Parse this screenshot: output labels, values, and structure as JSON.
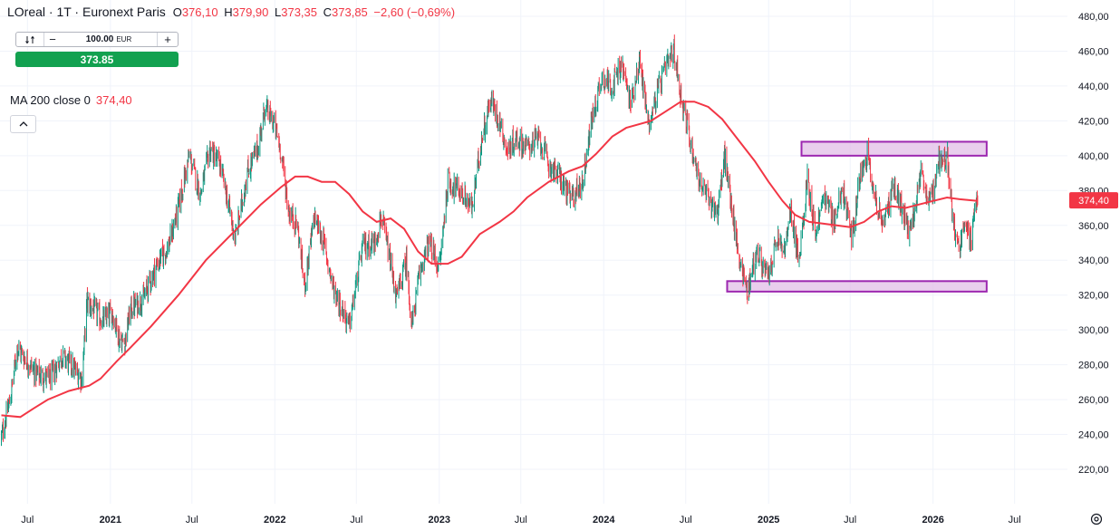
{
  "header": {
    "symbol": "LOreal · 1T · Euronext Paris",
    "ohlc": [
      {
        "key": "O",
        "value": "376,10"
      },
      {
        "key": "H",
        "value": "379,90"
      },
      {
        "key": "L",
        "value": "373,35"
      },
      {
        "key": "C",
        "value": "373,85"
      }
    ],
    "change": "−2,60 (−0,69%)"
  },
  "order_panel": {
    "sync_icon": "sync-icon",
    "minus": "−",
    "quantity": "100.00",
    "currency": "EUR",
    "plus": "+",
    "price": "373.85"
  },
  "indicator": {
    "label": "MA 200 close 0",
    "value": "374,40",
    "collapse_icon": "chevron-up-icon"
  },
  "settings_icon": "gear-icon",
  "colors": {
    "up": "#089981",
    "down": "#f23645",
    "ma": "#f23645",
    "zone_fill": "#e1bee7",
    "zone_stroke": "#9c27b0",
    "buy": "#12a150"
  },
  "chart_data": {
    "type": "candlestick",
    "price_axis": {
      "ticks": [
        "480,00",
        "460,00",
        "440,00",
        "420,00",
        "400,00",
        "380,00",
        "360,00",
        "340,00",
        "320,00",
        "300,00",
        "280,00",
        "260,00",
        "240,00",
        "220,00"
      ],
      "range": [
        208,
        482
      ],
      "current_label": "374,40"
    },
    "time_axis": {
      "labels": [
        "Jul",
        "2021",
        "Jul",
        "2022",
        "Jul",
        "2023",
        "Jul",
        "2024",
        "Jul",
        "2025",
        "Jul",
        "2026",
        "Jul"
      ],
      "bold": [
        "2021",
        "2022",
        "2023",
        "2024",
        "2025",
        "2026"
      ],
      "start": "2020-05-01",
      "end": "2026-08-31"
    },
    "zones": [
      {
        "from": "2025-03-15",
        "to": "2026-04-30",
        "low": 400,
        "high": 408
      },
      {
        "from": "2024-10-01",
        "to": "2026-04-30",
        "low": 322,
        "high": 328
      }
    ],
    "price_path": [
      [
        "2020-05-04",
        238
      ],
      [
        "2020-05-25",
        262
      ],
      [
        "2020-06-08",
        290
      ],
      [
        "2020-06-25",
        284
      ],
      [
        "2020-07-20",
        275
      ],
      [
        "2020-08-20",
        272
      ],
      [
        "2020-09-15",
        285
      ],
      [
        "2020-10-05",
        280
      ],
      [
        "2020-10-30",
        272
      ],
      [
        "2020-11-10",
        316
      ],
      [
        "2020-11-25",
        312
      ],
      [
        "2020-12-15",
        305
      ],
      [
        "2021-01-05",
        310
      ],
      [
        "2021-01-20",
        296
      ],
      [
        "2021-02-01",
        292
      ],
      [
        "2021-02-15",
        312
      ],
      [
        "2021-03-15",
        318
      ],
      [
        "2021-04-15",
        338
      ],
      [
        "2021-05-10",
        348
      ],
      [
        "2021-06-01",
        370
      ],
      [
        "2021-06-25",
        400
      ],
      [
        "2021-07-20",
        378
      ],
      [
        "2021-08-10",
        404
      ],
      [
        "2021-09-01",
        395
      ],
      [
        "2021-09-20",
        372
      ],
      [
        "2021-10-05",
        352
      ],
      [
        "2021-11-01",
        390
      ],
      [
        "2021-11-25",
        405
      ],
      [
        "2021-12-10",
        428
      ],
      [
        "2021-12-31",
        418
      ],
      [
        "2022-01-15",
        402
      ],
      [
        "2022-02-01",
        368
      ],
      [
        "2022-02-20",
        360
      ],
      [
        "2022-03-08",
        325
      ],
      [
        "2022-03-30",
        365
      ],
      [
        "2022-04-20",
        350
      ],
      [
        "2022-05-10",
        325
      ],
      [
        "2022-06-15",
        302
      ],
      [
        "2022-07-15",
        348
      ],
      [
        "2022-08-10",
        350
      ],
      [
        "2022-08-25",
        365
      ],
      [
        "2022-09-10",
        345
      ],
      [
        "2022-09-28",
        318
      ],
      [
        "2022-10-20",
        340
      ],
      [
        "2022-11-01",
        302
      ],
      [
        "2022-11-20",
        335
      ],
      [
        "2022-12-10",
        350
      ],
      [
        "2023-01-01",
        335
      ],
      [
        "2023-01-20",
        385
      ],
      [
        "2023-02-15",
        380
      ],
      [
        "2023-03-15",
        370
      ],
      [
        "2023-04-05",
        410
      ],
      [
        "2023-04-25",
        432
      ],
      [
        "2023-05-15",
        420
      ],
      [
        "2023-06-01",
        402
      ],
      [
        "2023-06-20",
        410
      ],
      [
        "2023-07-15",
        405
      ],
      [
        "2023-08-10",
        410
      ],
      [
        "2023-09-01",
        395
      ],
      [
        "2023-09-25",
        388
      ],
      [
        "2023-10-20",
        375
      ],
      [
        "2023-11-15",
        385
      ],
      [
        "2023-12-05",
        420
      ],
      [
        "2023-12-28",
        445
      ],
      [
        "2024-01-20",
        440
      ],
      [
        "2024-02-10",
        452
      ],
      [
        "2024-03-01",
        430
      ],
      [
        "2024-03-20",
        455
      ],
      [
        "2024-04-10",
        418
      ],
      [
        "2024-05-01",
        438
      ],
      [
        "2024-05-20",
        452
      ],
      [
        "2024-06-05",
        460
      ],
      [
        "2024-06-20",
        435
      ],
      [
        "2024-07-10",
        410
      ],
      [
        "2024-08-01",
        385
      ],
      [
        "2024-08-20",
        375
      ],
      [
        "2024-09-10",
        368
      ],
      [
        "2024-09-25",
        400
      ],
      [
        "2024-10-10",
        372
      ],
      [
        "2024-10-25",
        345
      ],
      [
        "2024-11-15",
        322
      ],
      [
        "2024-12-05",
        345
      ],
      [
        "2024-12-31",
        330
      ],
      [
        "2025-01-20",
        352
      ],
      [
        "2025-02-05",
        345
      ],
      [
        "2025-02-20",
        368
      ],
      [
        "2025-03-10",
        338
      ],
      [
        "2025-03-28",
        388
      ],
      [
        "2025-04-15",
        355
      ],
      [
        "2025-05-05",
        378
      ],
      [
        "2025-05-25",
        362
      ],
      [
        "2025-06-15",
        380
      ],
      [
        "2025-07-05",
        352
      ],
      [
        "2025-07-25",
        392
      ],
      [
        "2025-08-10",
        403
      ],
      [
        "2025-08-25",
        375
      ],
      [
        "2025-09-15",
        360
      ],
      [
        "2025-10-05",
        385
      ],
      [
        "2025-10-20",
        372
      ],
      [
        "2025-11-10",
        355
      ],
      [
        "2025-12-05",
        388
      ],
      [
        "2025-12-25",
        372
      ],
      [
        "2026-01-15",
        398
      ],
      [
        "2026-02-02",
        400
      ],
      [
        "2026-02-12",
        365
      ],
      [
        "2026-02-28",
        345
      ],
      [
        "2026-03-12",
        365
      ],
      [
        "2026-03-28",
        348
      ],
      [
        "2026-04-05",
        376
      ],
      [
        "2026-04-10",
        374
      ]
    ],
    "moving_average": [
      [
        "2020-05-04",
        251
      ],
      [
        "2020-06-15",
        250
      ],
      [
        "2020-07-15",
        255
      ],
      [
        "2020-08-15",
        260
      ],
      [
        "2020-10-01",
        265
      ],
      [
        "2020-11-15",
        268
      ],
      [
        "2020-12-10",
        272
      ],
      [
        "2021-01-15",
        282
      ],
      [
        "2021-02-15",
        290
      ],
      [
        "2021-04-01",
        302
      ],
      [
        "2021-06-01",
        320
      ],
      [
        "2021-08-01",
        340
      ],
      [
        "2021-10-01",
        356
      ],
      [
        "2021-12-01",
        372
      ],
      [
        "2022-01-15",
        382
      ],
      [
        "2022-02-15",
        388
      ],
      [
        "2022-03-15",
        388
      ],
      [
        "2022-04-15",
        385
      ],
      [
        "2022-05-15",
        385
      ],
      [
        "2022-06-15",
        378
      ],
      [
        "2022-07-15",
        368
      ],
      [
        "2022-08-15",
        362
      ],
      [
        "2022-09-15",
        364
      ],
      [
        "2022-10-15",
        358
      ],
      [
        "2022-11-15",
        345
      ],
      [
        "2022-12-15",
        338
      ],
      [
        "2023-01-20",
        338
      ],
      [
        "2023-02-20",
        342
      ],
      [
        "2023-04-01",
        355
      ],
      [
        "2023-05-15",
        362
      ],
      [
        "2023-06-15",
        368
      ],
      [
        "2023-07-15",
        376
      ],
      [
        "2023-09-01",
        385
      ],
      [
        "2023-10-15",
        391
      ],
      [
        "2023-11-15",
        394
      ],
      [
        "2023-12-15",
        401
      ],
      [
        "2024-01-20",
        411
      ],
      [
        "2024-02-20",
        416
      ],
      [
        "2024-04-15",
        420
      ],
      [
        "2024-05-15",
        425
      ],
      [
        "2024-06-20",
        431
      ],
      [
        "2024-07-20",
        431
      ],
      [
        "2024-08-20",
        428
      ],
      [
        "2024-09-20",
        421
      ],
      [
        "2024-10-20",
        411
      ],
      [
        "2024-12-01",
        397
      ],
      [
        "2025-01-01",
        385
      ],
      [
        "2025-02-01",
        374
      ],
      [
        "2025-03-01",
        366
      ],
      [
        "2025-04-01",
        362
      ],
      [
        "2025-05-01",
        361
      ],
      [
        "2025-06-01",
        360
      ],
      [
        "2025-07-01",
        359
      ],
      [
        "2025-08-01",
        362
      ],
      [
        "2025-09-01",
        368
      ],
      [
        "2025-10-01",
        371
      ],
      [
        "2025-11-01",
        370
      ],
      [
        "2025-12-01",
        372
      ],
      [
        "2026-01-01",
        374
      ],
      [
        "2026-02-01",
        376
      ],
      [
        "2026-03-01",
        375
      ],
      [
        "2026-04-10",
        374
      ]
    ]
  }
}
